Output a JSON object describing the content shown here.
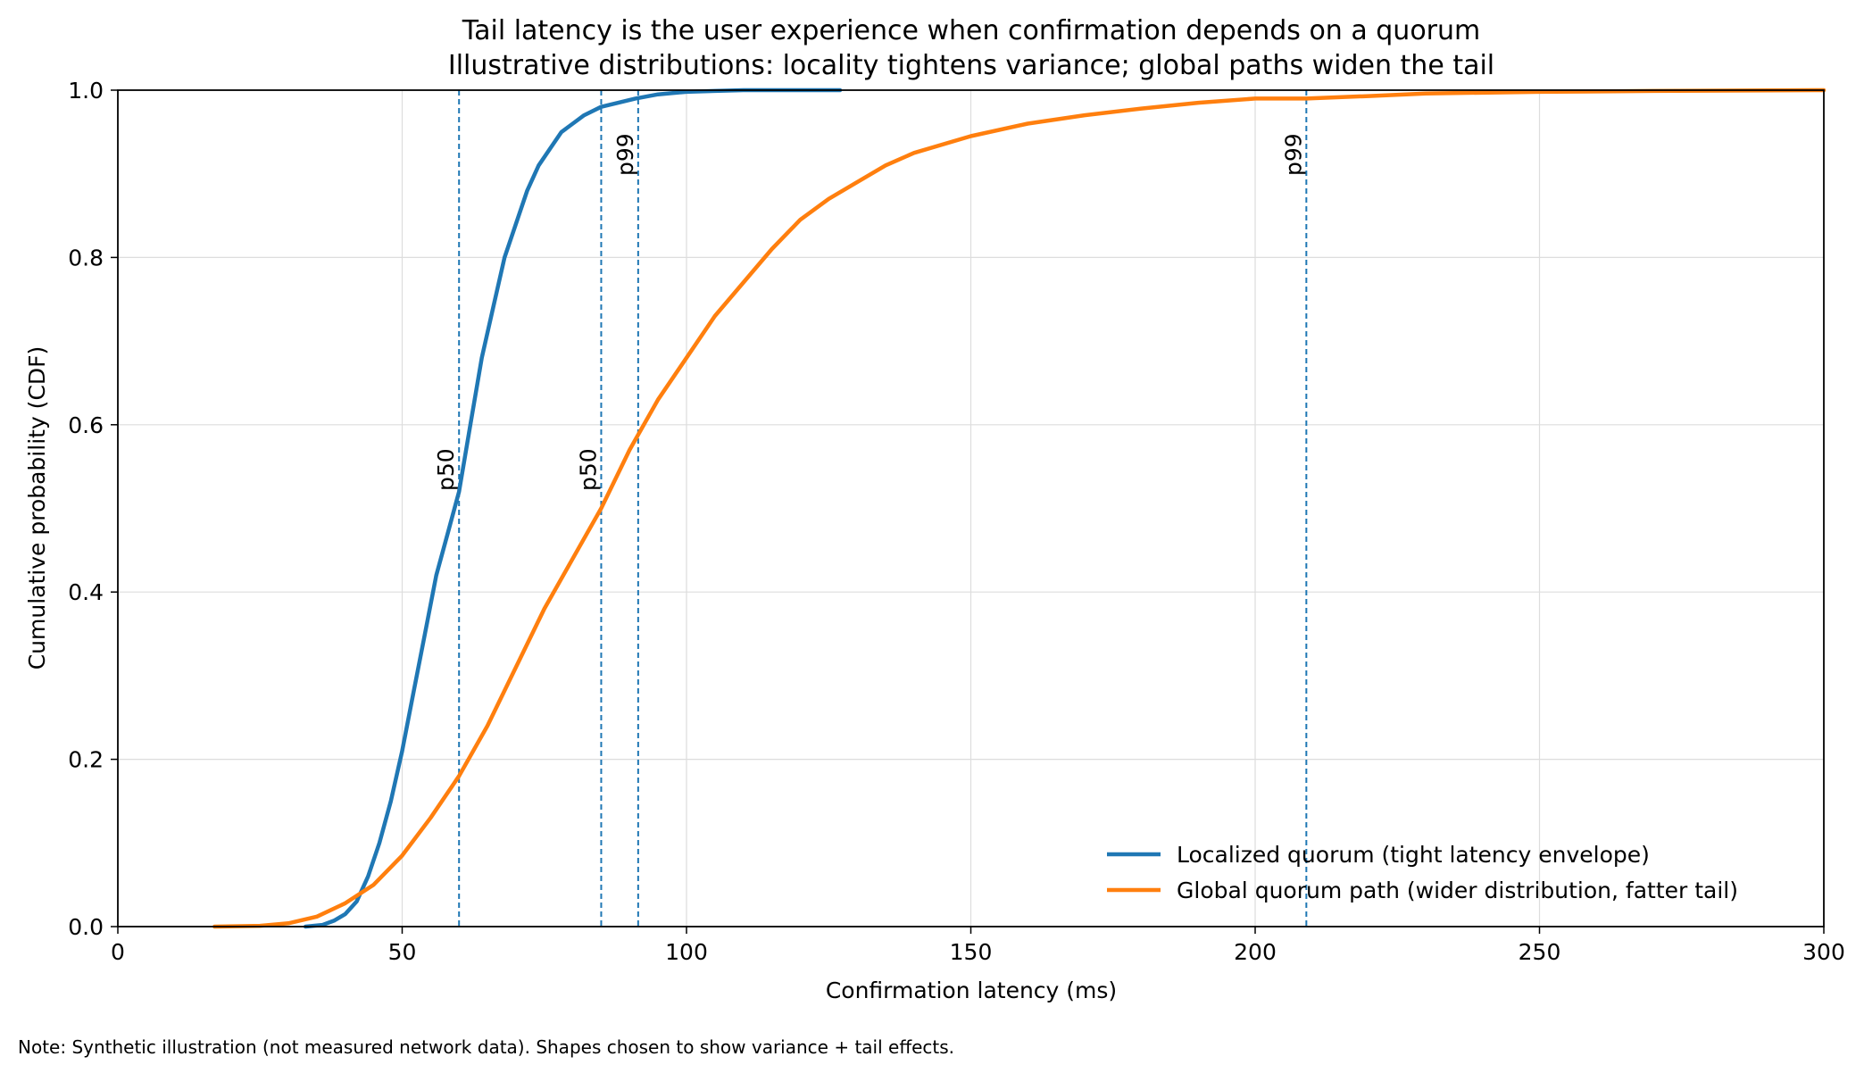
{
  "chart_data": {
    "type": "line",
    "title": "Tail latency is the user experience when confirmation depends on a quorum",
    "subtitle": "Illustrative distributions: locality tightens variance; global paths widen the tail",
    "xlabel": "Confirmation latency (ms)",
    "ylabel": "Cumulative probability (CDF)",
    "xlim": [
      0,
      300
    ],
    "ylim": [
      0,
      1.0
    ],
    "x_ticks": [
      "0",
      "50",
      "100",
      "150",
      "200",
      "250",
      "300"
    ],
    "y_ticks": [
      "0.0",
      "0.2",
      "0.4",
      "0.6",
      "0.8",
      "1.0"
    ],
    "grid": true,
    "legend_position": "lower-right",
    "note": "Note: Synthetic illustration (not measured network data). Shapes chosen to show variance + tail effects.",
    "series": [
      {
        "name": "Localized quorum (tight latency envelope)",
        "color": "#1f77b4",
        "x": [
          33,
          36,
          38,
          40,
          42,
          44,
          46,
          48,
          50,
          52,
          54,
          56,
          58,
          60,
          62,
          64,
          66,
          68,
          70,
          72,
          74,
          76,
          78,
          80,
          82,
          85,
          88,
          91,
          95,
          100,
          105,
          110,
          115,
          120,
          127
        ],
        "y": [
          0.0,
          0.002,
          0.007,
          0.015,
          0.03,
          0.06,
          0.1,
          0.15,
          0.21,
          0.28,
          0.35,
          0.42,
          0.47,
          0.52,
          0.6,
          0.68,
          0.74,
          0.8,
          0.84,
          0.88,
          0.91,
          0.93,
          0.95,
          0.96,
          0.97,
          0.98,
          0.985,
          0.99,
          0.995,
          0.998,
          0.999,
          1.0,
          1.0,
          1.0,
          1.0
        ]
      },
      {
        "name": "Global quorum path (wider distribution, fatter tail)",
        "color": "#ff7f0e",
        "x": [
          17,
          25,
          30,
          35,
          40,
          45,
          50,
          55,
          60,
          65,
          70,
          75,
          80,
          85,
          90,
          95,
          100,
          105,
          110,
          115,
          120,
          125,
          130,
          135,
          140,
          150,
          160,
          170,
          180,
          190,
          200,
          209,
          220,
          230,
          250,
          270,
          300
        ],
        "y": [
          0.0,
          0.001,
          0.004,
          0.012,
          0.028,
          0.05,
          0.085,
          0.13,
          0.18,
          0.24,
          0.31,
          0.38,
          0.44,
          0.5,
          0.57,
          0.63,
          0.68,
          0.73,
          0.77,
          0.81,
          0.845,
          0.87,
          0.89,
          0.91,
          0.925,
          0.945,
          0.96,
          0.97,
          0.978,
          0.985,
          0.99,
          0.99,
          0.993,
          0.996,
          0.998,
          0.999,
          1.0
        ]
      }
    ],
    "reference_lines": [
      {
        "x": 60,
        "label": "p50",
        "color": "#1f77b4"
      },
      {
        "x": 91.5,
        "label": "p99",
        "color": "#1f77b4"
      },
      {
        "x": 85,
        "label": "p50",
        "color": "#1f77b4"
      },
      {
        "x": 209,
        "label": "p99",
        "color": "#1f77b4"
      }
    ]
  }
}
